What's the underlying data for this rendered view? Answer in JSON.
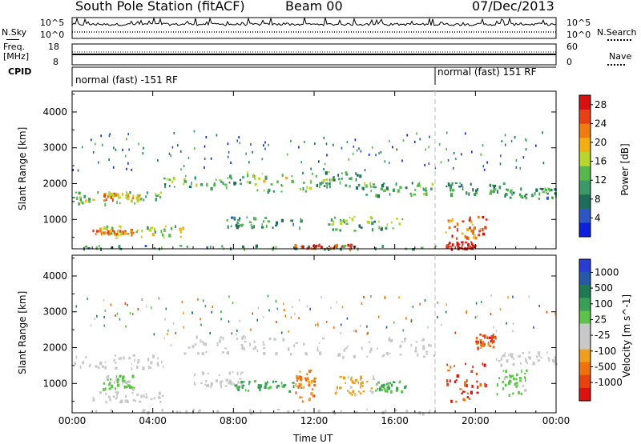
{
  "header": {
    "title": "South Pole Station (fitACF)",
    "beam": "Beam 00",
    "date": "07/Dec/2013"
  },
  "top_strips": {
    "nsky_label": "N.Sky",
    "nsky_ticks": [
      "10^5",
      "10^0"
    ],
    "nsearch_label": "N.Search",
    "freq_label_line1": "Freq.",
    "freq_label_line2": "[MHz]",
    "freq_ticks": [
      "18",
      "8"
    ],
    "nave_ticks": [
      "60",
      "0"
    ],
    "nave_label": "Nave",
    "cpid_label": "CPID",
    "cpid_segments": [
      {
        "label": "normal (fast) -151 RF",
        "start_hour": 0
      },
      {
        "label": "normal (fast) 151 RF",
        "start_hour": 18
      }
    ]
  },
  "colors": {
    "power_scale": [
      "#0a1fe0",
      "#2c55c8",
      "#1c6e58",
      "#3a9a66",
      "#55b84a",
      "#b8d62a",
      "#f2b010",
      "#f07a0a",
      "#e84015",
      "#d81010"
    ],
    "velocity_scale": [
      "#2a3cd8",
      "#245aa8",
      "#1e7a52",
      "#36a056",
      "#5cc248",
      "#c8c8c8",
      "#c8c8c8",
      "#f0a018",
      "#f0700a",
      "#e8420e",
      "#e01010"
    ]
  },
  "chart_data": [
    {
      "type": "heatmap",
      "title": "",
      "xlabel": "",
      "ylabel": "Slant Range [km]",
      "x_ticks": [
        "00:00",
        "04:00",
        "08:00",
        "12:00",
        "16:00",
        "20:00",
        "00:00"
      ],
      "xlim_hours": [
        0,
        24
      ],
      "y_ticks": [
        1000,
        2000,
        3000,
        4000
      ],
      "ylim": [
        180,
        4580
      ],
      "colorbar": {
        "label": "Power [dB]",
        "ticks": [
          4,
          8,
          12,
          16,
          20,
          24,
          28
        ],
        "range": [
          0,
          30
        ]
      },
      "echo_regions": [
        {
          "x_hours": [
            0,
            4.5
          ],
          "y_km": [
            1450,
            1800
          ],
          "value": 14
        },
        {
          "x_hours": [
            1.5,
            3.5
          ],
          "y_km": [
            1550,
            1750
          ],
          "value": 20
        },
        {
          "x_hours": [
            4.5,
            8.5
          ],
          "y_km": [
            1900,
            2250
          ],
          "value": 12
        },
        {
          "x_hours": [
            8.5,
            12.0
          ],
          "y_km": [
            1800,
            2350
          ],
          "value": 14
        },
        {
          "x_hours": [
            12.0,
            14.5
          ],
          "y_km": [
            1900,
            2400
          ],
          "value": 11
        },
        {
          "x_hours": [
            14.5,
            18.0
          ],
          "y_km": [
            1700,
            2050
          ],
          "value": 12
        },
        {
          "x_hours": [
            18.5,
            21.5
          ],
          "y_km": [
            1700,
            2050
          ],
          "value": 10
        },
        {
          "x_hours": [
            21.5,
            24.0
          ],
          "y_km": [
            1600,
            1900
          ],
          "value": 10
        },
        {
          "x_hours": [
            1.0,
            5.5
          ],
          "y_km": [
            500,
            850
          ],
          "value": 16
        },
        {
          "x_hours": [
            1.0,
            3.0
          ],
          "y_km": [
            620,
            780
          ],
          "value": 22
        },
        {
          "x_hours": [
            7.5,
            11.5
          ],
          "y_km": [
            800,
            1100
          ],
          "value": 10
        },
        {
          "x_hours": [
            12.5,
            16.5
          ],
          "y_km": [
            700,
            1100
          ],
          "value": 13
        },
        {
          "x_hours": [
            18.5,
            20.5
          ],
          "y_km": [
            500,
            1100
          ],
          "value": 24
        },
        {
          "x_hours": [
            18.5,
            20.0
          ],
          "y_km": [
            200,
            400
          ],
          "value": 28
        },
        {
          "x_hours": [
            11.0,
            14.0
          ],
          "y_km": [
            200,
            330
          ],
          "value": 26
        },
        {
          "x_hours": [
            0,
            18.0
          ],
          "y_km": [
            200,
            300
          ],
          "value": 10
        }
      ]
    },
    {
      "type": "heatmap",
      "title": "",
      "xlabel": "Time UT",
      "ylabel": "Slant Range [km]",
      "x_ticks": [
        "00:00",
        "04:00",
        "08:00",
        "12:00",
        "16:00",
        "20:00",
        "00:00"
      ],
      "xlim_hours": [
        0,
        24
      ],
      "y_ticks": [
        1000,
        2000,
        3000,
        4000
      ],
      "ylim": [
        180,
        4580
      ],
      "colorbar": {
        "label": "Velocity [m s^-1]",
        "ticks": [
          "1000",
          "500",
          "100",
          "25",
          "-25",
          "-100",
          "-500",
          "-1000"
        ],
        "range": [
          -1200,
          1200
        ]
      },
      "echo_regions": [
        {
          "x_hours": [
            0,
            4.5
          ],
          "y_km": [
            1450,
            1850
          ],
          "value": 0
        },
        {
          "x_hours": [
            4.5,
            12.0
          ],
          "y_km": [
            1850,
            2350
          ],
          "value": 0
        },
        {
          "x_hours": [
            12.0,
            18.0
          ],
          "y_km": [
            1750,
            2300
          ],
          "value": 0
        },
        {
          "x_hours": [
            21.0,
            24.0
          ],
          "y_km": [
            1550,
            1900
          ],
          "value": 0
        },
        {
          "x_hours": [
            1.0,
            4.5
          ],
          "y_km": [
            500,
            800
          ],
          "value": 0
        },
        {
          "x_hours": [
            1.5,
            3.0
          ],
          "y_km": [
            850,
            1250
          ],
          "value": 150
        },
        {
          "x_hours": [
            6.0,
            8.5
          ],
          "y_km": [
            950,
            1350
          ],
          "value": -200
        },
        {
          "x_hours": [
            8.0,
            11.0
          ],
          "y_km": [
            800,
            1100
          ],
          "value": 400
        },
        {
          "x_hours": [
            11.0,
            12.0
          ],
          "y_km": [
            500,
            1400
          ],
          "value": -600
        },
        {
          "x_hours": [
            13.0,
            15.0
          ],
          "y_km": [
            700,
            1250
          ],
          "value": -400
        },
        {
          "x_hours": [
            15.0,
            16.5
          ],
          "y_km": [
            800,
            1100
          ],
          "value": 300
        },
        {
          "x_hours": [
            18.5,
            20.5
          ],
          "y_km": [
            500,
            1600
          ],
          "value": -900
        },
        {
          "x_hours": [
            20.0,
            21.0
          ],
          "y_km": [
            2000,
            2400
          ],
          "value": -800
        },
        {
          "x_hours": [
            21.0,
            22.5
          ],
          "y_km": [
            700,
            1400
          ],
          "value": 150
        },
        {
          "x_hours": [
            0,
            18.0
          ],
          "y_km": [
            200,
            300
          ],
          "value": 40
        }
      ]
    }
  ]
}
